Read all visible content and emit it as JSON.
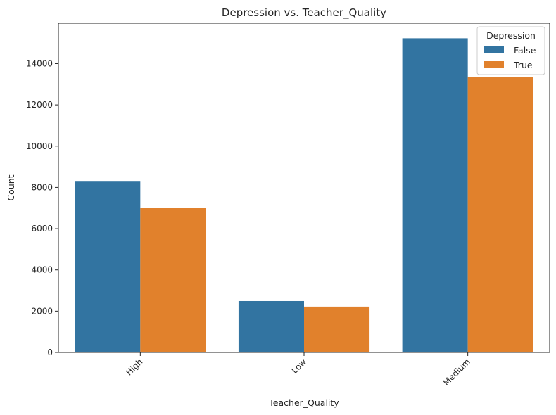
{
  "chart_data": {
    "type": "bar",
    "title": "Depression vs. Teacher_Quality",
    "xlabel": "Teacher_Quality",
    "ylabel": "Count",
    "categories": [
      "High",
      "Low",
      "Medium"
    ],
    "series": [
      {
        "name": "False",
        "values": [
          8280,
          2490,
          15230
        ],
        "color": "#3274a1"
      },
      {
        "name": "True",
        "values": [
          7000,
          2220,
          13340
        ],
        "color": "#e1812c"
      }
    ],
    "ylim": [
      0,
      15960
    ],
    "yticks": [
      0,
      2000,
      4000,
      6000,
      8000,
      10000,
      12000,
      14000
    ],
    "legend": {
      "title": "Depression",
      "placement": "top-right"
    },
    "grid": false
  }
}
